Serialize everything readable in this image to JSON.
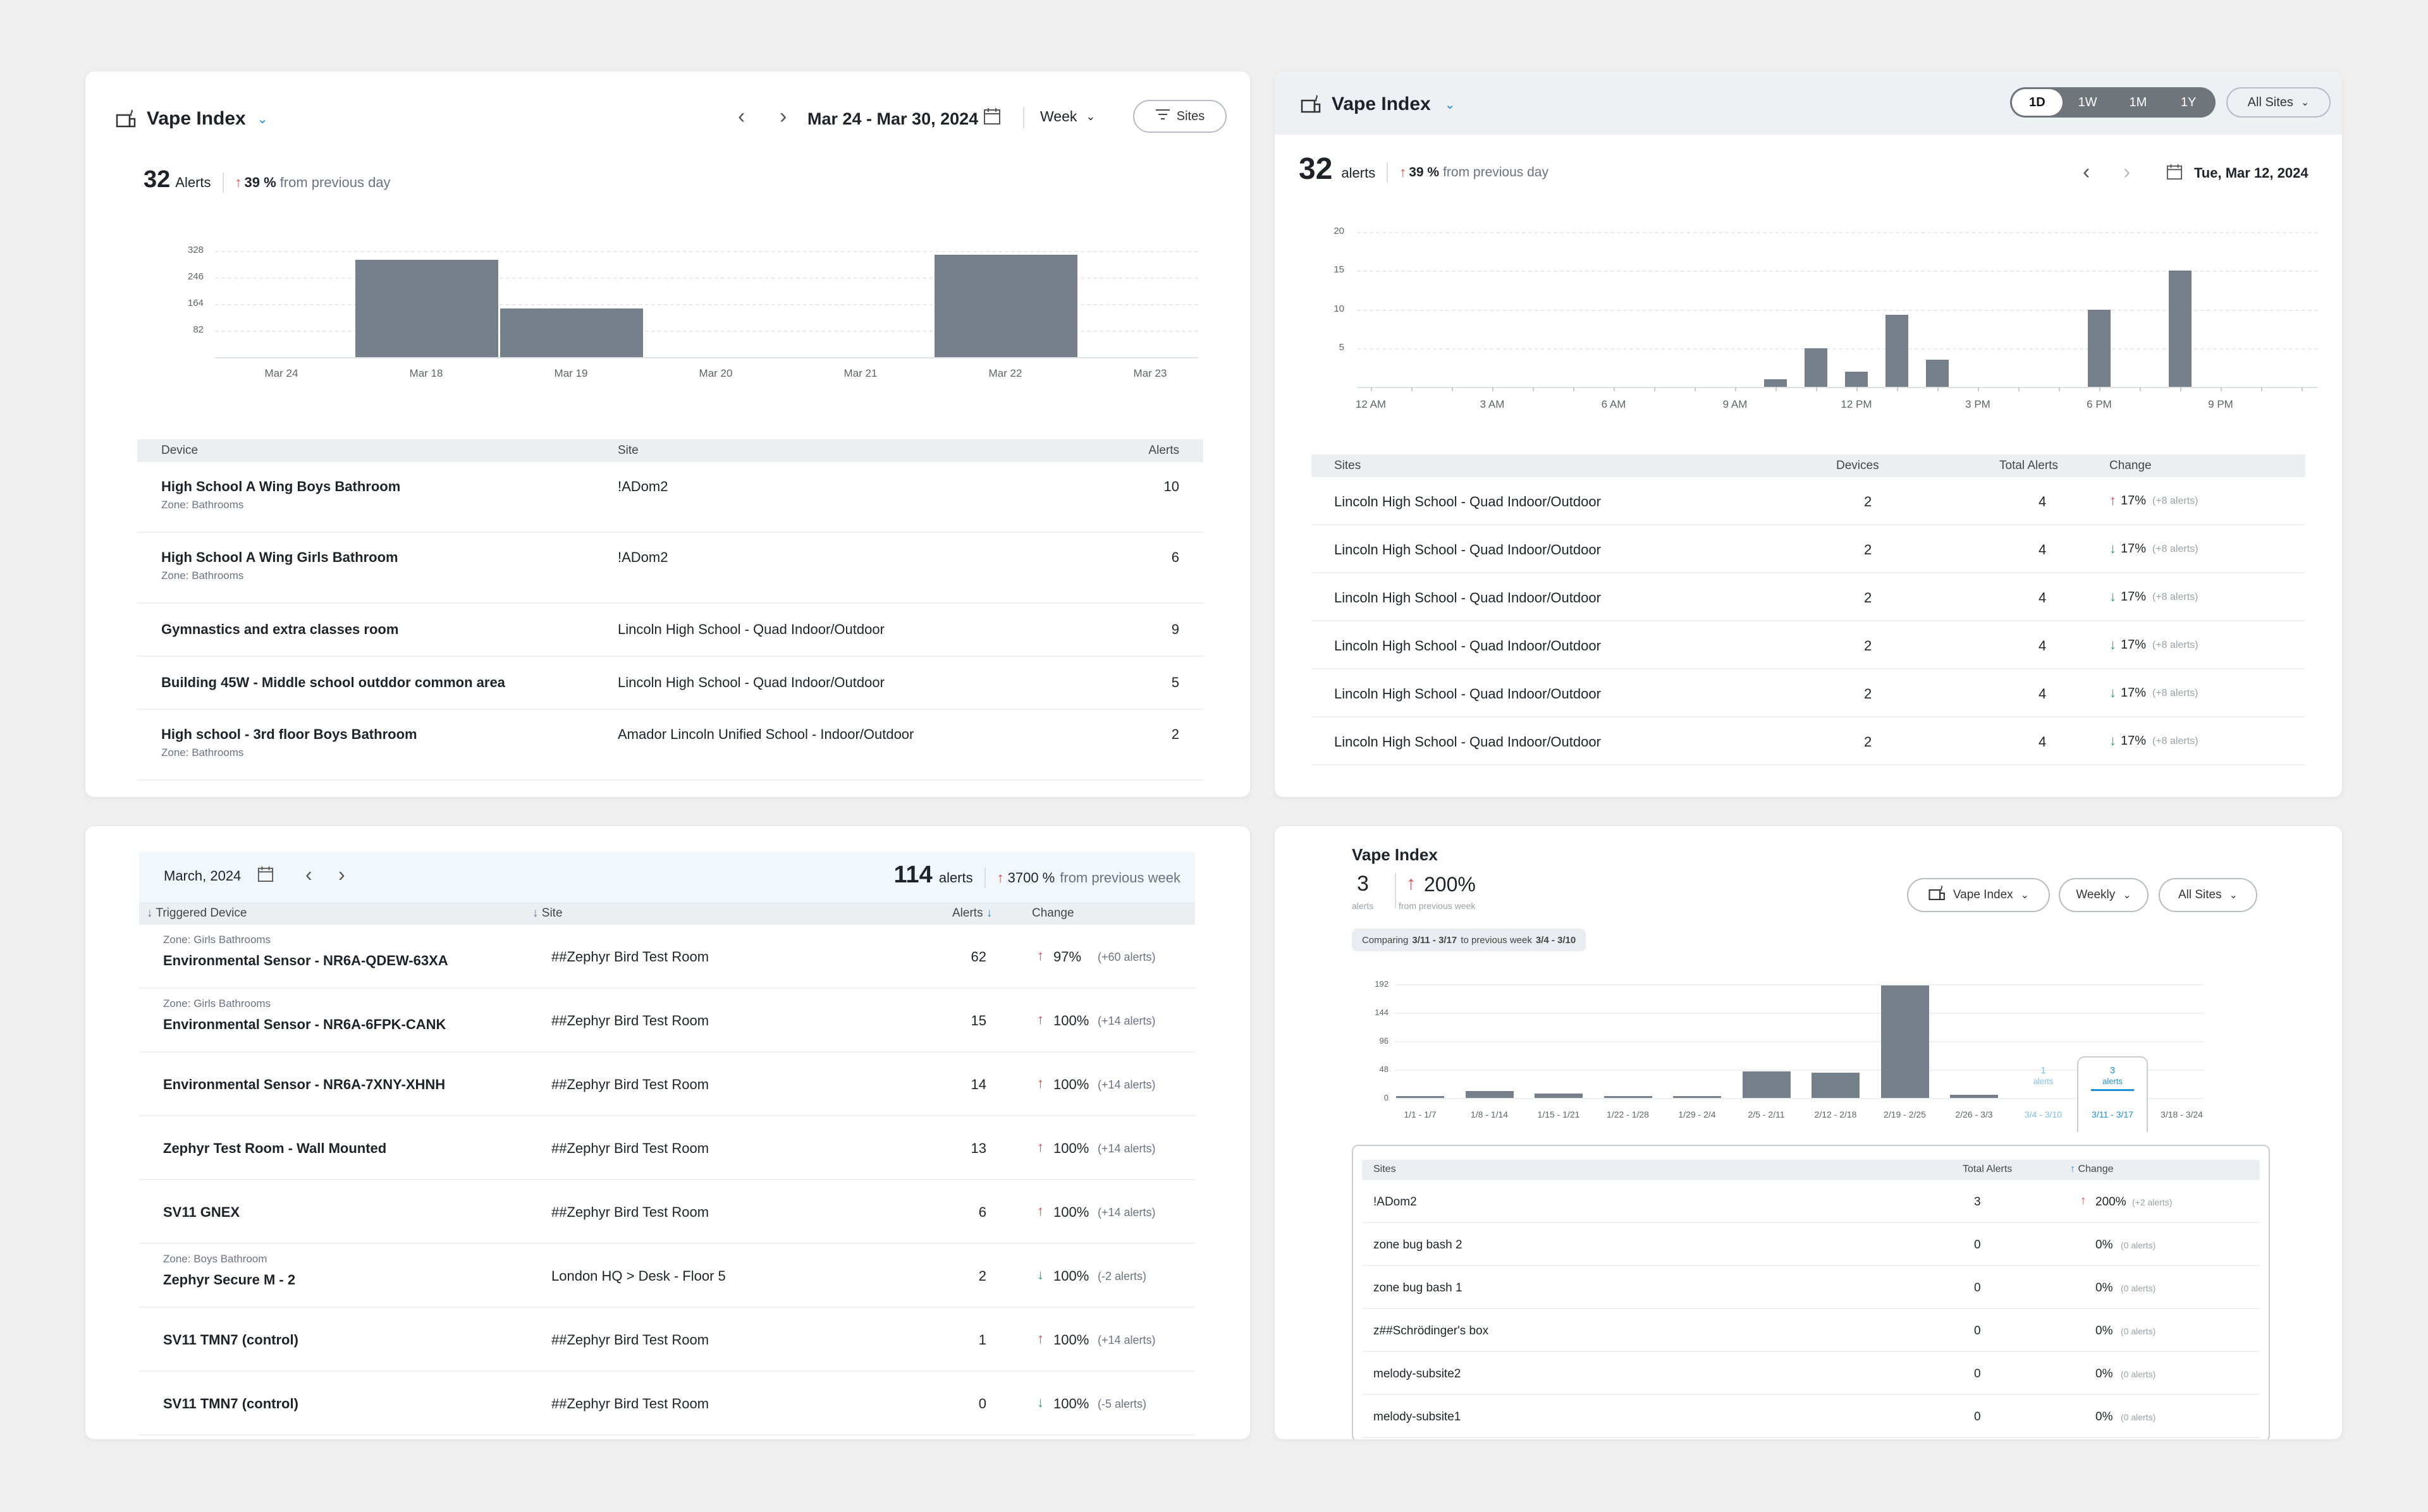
{
  "colors": {
    "bar": "#75808b",
    "up": "#e0484b",
    "down": "#2fa36b",
    "accent": "#1a8fd6"
  },
  "p1": {
    "title": "Vape Index",
    "range": "Mar 24 - Mar 30, 2024",
    "period": "Week",
    "sites_btn": "Sites",
    "count": "32",
    "count_label": "Alerts",
    "change_pct": "39 %",
    "change_text": "from previous day",
    "chart_data": {
      "type": "bar",
      "categories": [
        "Mar 24",
        "Mar 18",
        "Mar 19",
        "Mar 20",
        "Mar 21",
        "Mar 22",
        "Mar 23"
      ],
      "values": [
        0,
        300,
        150,
        0,
        0,
        316,
        0
      ],
      "yticks": [
        "328",
        "246",
        "164",
        "82"
      ],
      "ylim": [
        0,
        410
      ]
    },
    "headers": {
      "device": "Device",
      "site": "Site",
      "alerts": "Alerts"
    },
    "rows": [
      {
        "device": "High School A Wing Boys Bathroom",
        "zone": "Zone: Bathrooms",
        "site": "!ADom2",
        "alerts": "10"
      },
      {
        "device": "High School A Wing Girls Bathroom",
        "zone": "Zone: Bathrooms",
        "site": "!ADom2",
        "alerts": "6"
      },
      {
        "device": "Gymnastics and extra classes room",
        "zone": "",
        "site": "Lincoln High School - Quad Indoor/Outdoor",
        "alerts": "9"
      },
      {
        "device": "Building 45W - Middle school outddor common area",
        "zone": "",
        "site": "Lincoln High School - Quad Indoor/Outdoor",
        "alerts": "5"
      },
      {
        "device": "High school - 3rd floor Boys Bathroom",
        "zone": "Zone: Bathrooms",
        "site": "Amador Lincoln Unified School - Indoor/Outdoor",
        "alerts": "2"
      }
    ]
  },
  "p2": {
    "title": "Vape Index",
    "seg": [
      "1D",
      "1W",
      "1M",
      "1Y"
    ],
    "all_sites": "All Sites",
    "count": "32",
    "count_label": "alerts",
    "change_pct": "39 %",
    "change_text": "from previous day",
    "date": "Tue, Mar 12, 2024",
    "chart_data": {
      "type": "bar",
      "xticks": [
        "12 AM",
        "3 AM",
        "6 AM",
        "9 AM",
        "12 PM",
        "3 PM",
        "6 PM",
        "9 PM"
      ],
      "yticks": [
        "20",
        "15",
        "10",
        "5"
      ],
      "ylim": [
        0,
        20
      ],
      "values": [
        0,
        0,
        0,
        0,
        0,
        0,
        0,
        0,
        0,
        0,
        1,
        5,
        2,
        9.3,
        3.5,
        0,
        0,
        0,
        10,
        0,
        15,
        0,
        0,
        0
      ]
    },
    "headers": {
      "sites": "Sites",
      "devices": "Devices",
      "total": "Total Alerts",
      "change": "Change"
    },
    "rows": [
      {
        "site": "Lincoln High School - Quad Indoor/Outdoor",
        "devices": "2",
        "total": "4",
        "pct": "17%",
        "extra": "(+8 alerts)",
        "dir": "up"
      },
      {
        "site": "Lincoln High School - Quad Indoor/Outdoor",
        "devices": "2",
        "total": "4",
        "pct": "17%",
        "extra": "(+8 alerts)",
        "dir": "down"
      },
      {
        "site": "Lincoln High School - Quad Indoor/Outdoor",
        "devices": "2",
        "total": "4",
        "pct": "17%",
        "extra": "(+8 alerts)",
        "dir": "down"
      },
      {
        "site": "Lincoln High School - Quad Indoor/Outdoor",
        "devices": "2",
        "total": "4",
        "pct": "17%",
        "extra": "(+8 alerts)",
        "dir": "down"
      },
      {
        "site": "Lincoln High School - Quad Indoor/Outdoor",
        "devices": "2",
        "total": "4",
        "pct": "17%",
        "extra": "(+8 alerts)",
        "dir": "down"
      },
      {
        "site": "Lincoln High School - Quad Indoor/Outdoor",
        "devices": "2",
        "total": "4",
        "pct": "17%",
        "extra": "(+8 alerts)",
        "dir": "down"
      }
    ]
  },
  "p3": {
    "month": "March, 2024",
    "count": "114",
    "count_label": "alerts",
    "change_pct": "3700 %",
    "change_text": "from previous week",
    "headers": {
      "device": "Triggered Device",
      "site": "Site",
      "alerts": "Alerts",
      "change": "Change"
    },
    "rows": [
      {
        "zone": "Zone: Girls Bathrooms",
        "device": "Environmental Sensor - NR6A-QDEW-63XA",
        "site": "##Zephyr Bird Test Room",
        "alerts": "62",
        "pct": "97%",
        "extra": "(+60 alerts)",
        "dir": "up"
      },
      {
        "zone": "Zone: Girls Bathrooms",
        "device": "Environmental Sensor - NR6A-6FPK-CANK",
        "site": "##Zephyr Bird Test Room",
        "alerts": "15",
        "pct": "100%",
        "extra": "(+14 alerts)",
        "dir": "up"
      },
      {
        "zone": "",
        "device": "Environmental Sensor - NR6A-7XNY-XHNH",
        "site": "##Zephyr Bird Test Room",
        "alerts": "14",
        "pct": "100%",
        "extra": "(+14 alerts)",
        "dir": "up"
      },
      {
        "zone": "",
        "device": "Zephyr Test Room - Wall Mounted",
        "site": "##Zephyr Bird Test Room",
        "alerts": "13",
        "pct": "100%",
        "extra": "(+14 alerts)",
        "dir": "up"
      },
      {
        "zone": "",
        "device": "SV11 GNEX",
        "site": "##Zephyr Bird Test Room",
        "alerts": "6",
        "pct": "100%",
        "extra": "(+14 alerts)",
        "dir": "up"
      },
      {
        "zone": "Zone: Boys Bathroom",
        "device": "Zephyr Secure M - 2",
        "site": "London HQ  >  Desk - Floor 5",
        "alerts": "2",
        "pct": "100%",
        "extra": "(-2 alerts)",
        "dir": "down"
      },
      {
        "zone": "",
        "device": "SV11 TMN7 (control)",
        "site": "##Zephyr Bird Test Room",
        "alerts": "1",
        "pct": "100%",
        "extra": "(+14 alerts)",
        "dir": "up"
      },
      {
        "zone": "",
        "device": "SV11 TMN7 (control)",
        "site": "##Zephyr Bird Test Room",
        "alerts": "0",
        "pct": "100%",
        "extra": "(-5 alerts)",
        "dir": "down"
      }
    ]
  },
  "p4": {
    "title": "Vape Index",
    "count": "3",
    "count_label": "alerts",
    "pct": "200%",
    "pct_label": "from previous week",
    "dd1": "Vape Index",
    "dd2": "Weekly",
    "dd3": "All Sites",
    "comparing_prefix": "Comparing",
    "comparing_range": "3/11 - 3/17",
    "comparing_mid": "to previous week",
    "comparing_prev": "3/4 - 3/10",
    "chart_data": {
      "type": "bar",
      "categories": [
        "1/1 - 1/7",
        "1/8 - 1/14",
        "1/15 - 1/21",
        "1/22 - 1/28",
        "1/29 - 2/4",
        "2/5 - 2/11",
        "2/12 - 2/18",
        "2/19 - 2/25",
        "2/26 - 3/3",
        "3/4 - 3/10",
        "3/11 - 3/17",
        "3/18 - 3/24"
      ],
      "values": [
        2,
        12,
        8,
        2,
        2,
        45,
        43,
        190,
        5,
        1,
        3,
        0
      ],
      "yticks": [
        "192",
        "144",
        "96",
        "48",
        "0"
      ],
      "ylim": [
        0,
        192
      ],
      "callouts": [
        {
          "index": 9,
          "value": "1",
          "label": "alerts"
        },
        {
          "index": 10,
          "value": "3",
          "label": "alerts"
        }
      ]
    },
    "headers": {
      "sites": "Sites",
      "total": "Total Alerts",
      "change": "Change"
    },
    "rows": [
      {
        "site": "!ADom2",
        "total": "3",
        "pct": "200%",
        "extra": "(+2 alerts)",
        "dir": "up"
      },
      {
        "site": "zone bug bash 2",
        "total": "0",
        "pct": "0%",
        "extra": "(0 alerts)",
        "dir": "none"
      },
      {
        "site": "zone bug bash 1",
        "total": "0",
        "pct": "0%",
        "extra": "(0 alerts)",
        "dir": "none"
      },
      {
        "site": "z##Schrödinger's box",
        "total": "0",
        "pct": "0%",
        "extra": "(0 alerts)",
        "dir": "none"
      },
      {
        "site": "melody-subsite2",
        "total": "0",
        "pct": "0%",
        "extra": "(0 alerts)",
        "dir": "none"
      },
      {
        "site": "melody-subsite1",
        "total": "0",
        "pct": "0%",
        "extra": "(0 alerts)",
        "dir": "none"
      }
    ]
  }
}
